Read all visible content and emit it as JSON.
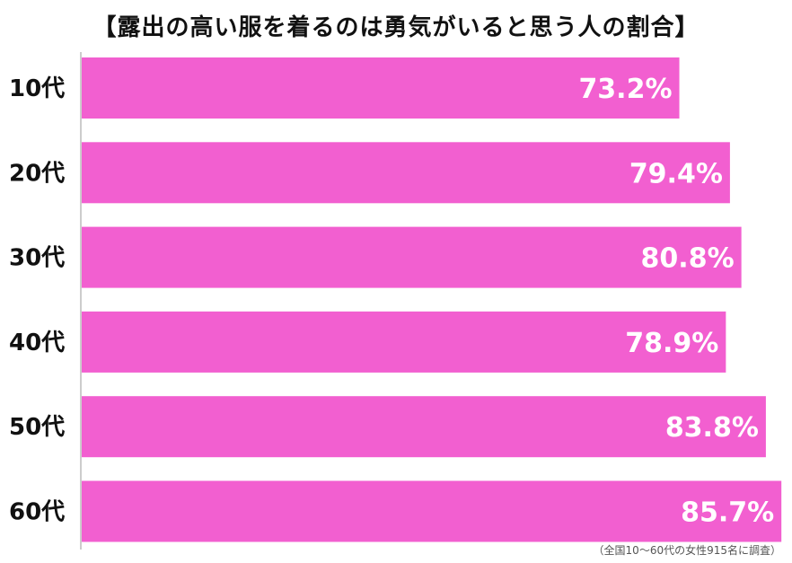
{
  "title": "【露出の高い服を着るのは勇気がいると思う人の割合】",
  "footnote": "（全国10～60代の女性915名に調査）",
  "colors": {
    "bar": "#f25fd0",
    "axis": "#cccccc",
    "label": "#111111",
    "value_text": "#ffffff"
  },
  "chart_data": {
    "type": "bar",
    "orientation": "horizontal",
    "title": "【露出の高い服を着るのは勇気がいると思う人の割合】",
    "categories": [
      "10代",
      "20代",
      "30代",
      "40代",
      "50代",
      "60代"
    ],
    "values": [
      73.2,
      79.4,
      80.8,
      78.9,
      83.8,
      85.7
    ],
    "value_labels": [
      "73.2%",
      "79.4%",
      "80.8%",
      "78.9%",
      "83.8%",
      "85.7%"
    ],
    "xlabel": "",
    "ylabel": "",
    "grid": false
  }
}
